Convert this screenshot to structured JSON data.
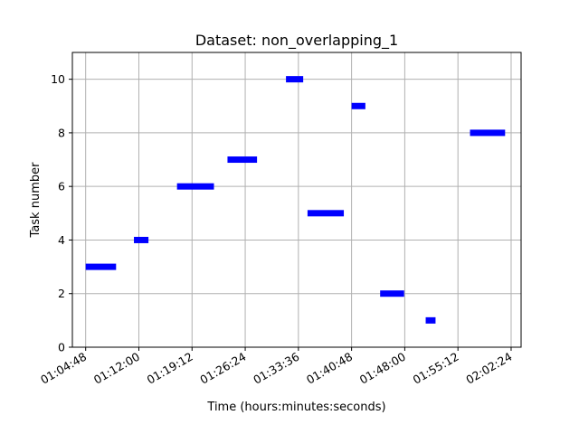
{
  "chart_data": {
    "type": "scatter",
    "title": "Dataset: non_overlapping_1",
    "xlabel": "Time (hours:minutes:seconds)",
    "ylabel": "Task number",
    "grid": true,
    "bar_color": "#0000ff",
    "grid_color": "#b0b0b0",
    "xlim": [
      "01:03:00",
      "02:03:45"
    ],
    "ylim": [
      0,
      11
    ],
    "x_ticks": [
      "01:04:48",
      "01:12:00",
      "01:19:12",
      "01:26:24",
      "01:33:36",
      "01:40:48",
      "01:48:00",
      "01:55:12",
      "02:02:24"
    ],
    "y_ticks": [
      0,
      2,
      4,
      6,
      8,
      10
    ],
    "tasks": [
      {
        "task": 3,
        "start": "01:04:48",
        "end": "01:08:55"
      },
      {
        "task": 4,
        "start": "01:11:20",
        "end": "01:13:18"
      },
      {
        "task": 6,
        "start": "01:17:10",
        "end": "01:22:10"
      },
      {
        "task": 7,
        "start": "01:24:00",
        "end": "01:28:00"
      },
      {
        "task": 10,
        "start": "01:31:55",
        "end": "01:34:15"
      },
      {
        "task": 5,
        "start": "01:34:50",
        "end": "01:39:45"
      },
      {
        "task": 9,
        "start": "01:40:48",
        "end": "01:42:40"
      },
      {
        "task": 2,
        "start": "01:44:40",
        "end": "01:47:55"
      },
      {
        "task": 1,
        "start": "01:50:50",
        "end": "01:52:10"
      },
      {
        "task": 8,
        "start": "01:56:50",
        "end": "02:01:35"
      }
    ]
  }
}
